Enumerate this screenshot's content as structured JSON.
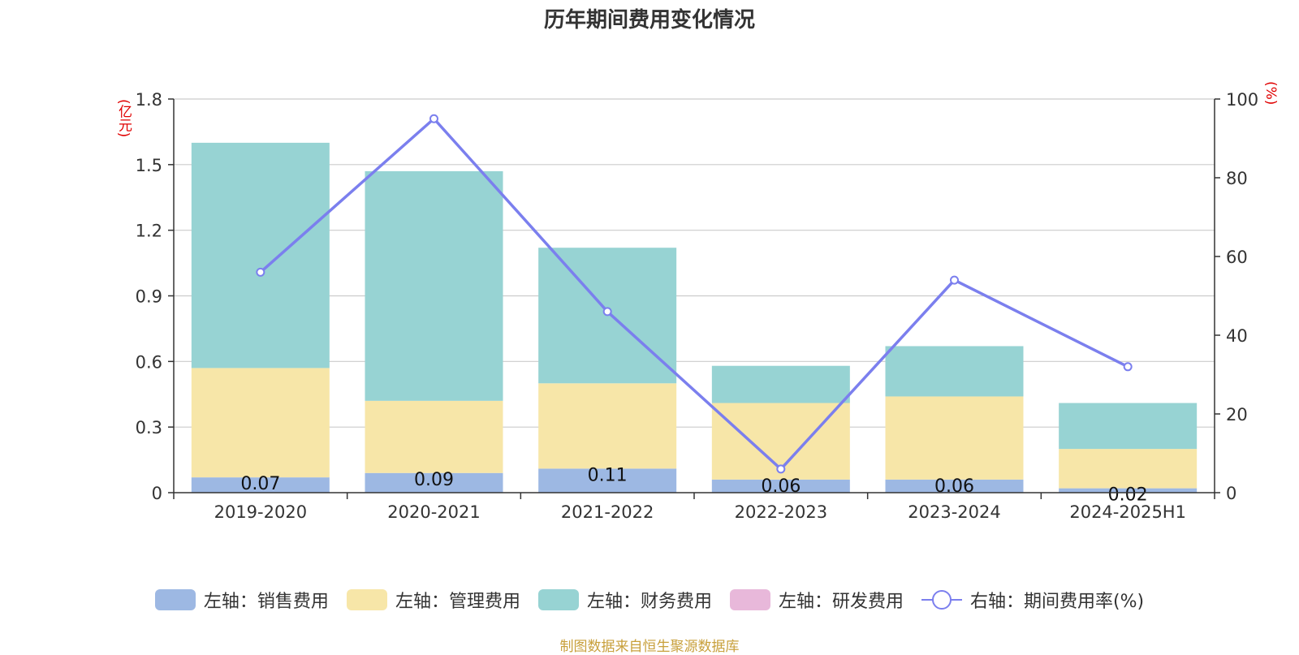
{
  "title": "历年期间费用变化情况",
  "left_unit": "(亿元)",
  "right_unit": "(%)",
  "source": "制图数据来自恒生聚源数据库",
  "colors": {
    "sales": "#9db8e3",
    "admin": "#f7e6a8",
    "finance": "#97d3d3",
    "rd": "#e8b8da",
    "rate": "#7b7fee",
    "grid": "#cccccc"
  },
  "legend": [
    {
      "label": "左轴：销售费用",
      "color": "#9db8e3",
      "type": "bar"
    },
    {
      "label": "左轴：管理费用",
      "color": "#f7e6a8",
      "type": "bar"
    },
    {
      "label": "左轴：财务费用",
      "color": "#97d3d3",
      "type": "bar"
    },
    {
      "label": "左轴：研发费用",
      "color": "#e8b8da",
      "type": "bar"
    },
    {
      "label": "右轴：期间费用率(%)",
      "color": "#7b7fee",
      "type": "line"
    }
  ],
  "chart_data": {
    "type": "bar",
    "stacked": true,
    "title": "历年期间费用变化情况",
    "categories": [
      "2019-2020",
      "2020-2021",
      "2021-2022",
      "2022-2023",
      "2023-2024",
      "2024-2025H1"
    ],
    "series": [
      {
        "name": "左轴：销售费用",
        "axis": "left",
        "values": [
          0.07,
          0.09,
          0.11,
          0.06,
          0.06,
          0.02
        ],
        "data_labels": [
          "0.07",
          "0.09",
          "0.11",
          "0.06",
          "0.06",
          "0.02"
        ]
      },
      {
        "name": "左轴：管理费用",
        "axis": "left",
        "values": [
          0.5,
          0.33,
          0.39,
          0.35,
          0.38,
          0.18
        ]
      },
      {
        "name": "左轴：财务费用",
        "axis": "left",
        "values": [
          1.03,
          1.05,
          0.62,
          0.17,
          0.23,
          0.21
        ]
      },
      {
        "name": "左轴：研发费用",
        "axis": "left",
        "values": [
          0,
          0,
          0,
          0,
          0,
          0
        ]
      },
      {
        "name": "右轴：期间费用率(%)",
        "axis": "right",
        "type": "line",
        "values": [
          56,
          95,
          46,
          6,
          54,
          32
        ]
      }
    ],
    "y_left": {
      "label": "(亿元)",
      "ylim": [
        0,
        1.8
      ],
      "ticks": [
        "0",
        "0.3",
        "0.6",
        "0.9",
        "1.2",
        "1.5",
        "1.8"
      ]
    },
    "y_right": {
      "label": "(%)",
      "ylim": [
        0,
        100
      ],
      "ticks": [
        "0",
        "20",
        "40",
        "60",
        "80",
        "100"
      ]
    },
    "grid": true,
    "legend_position": "bottom"
  }
}
